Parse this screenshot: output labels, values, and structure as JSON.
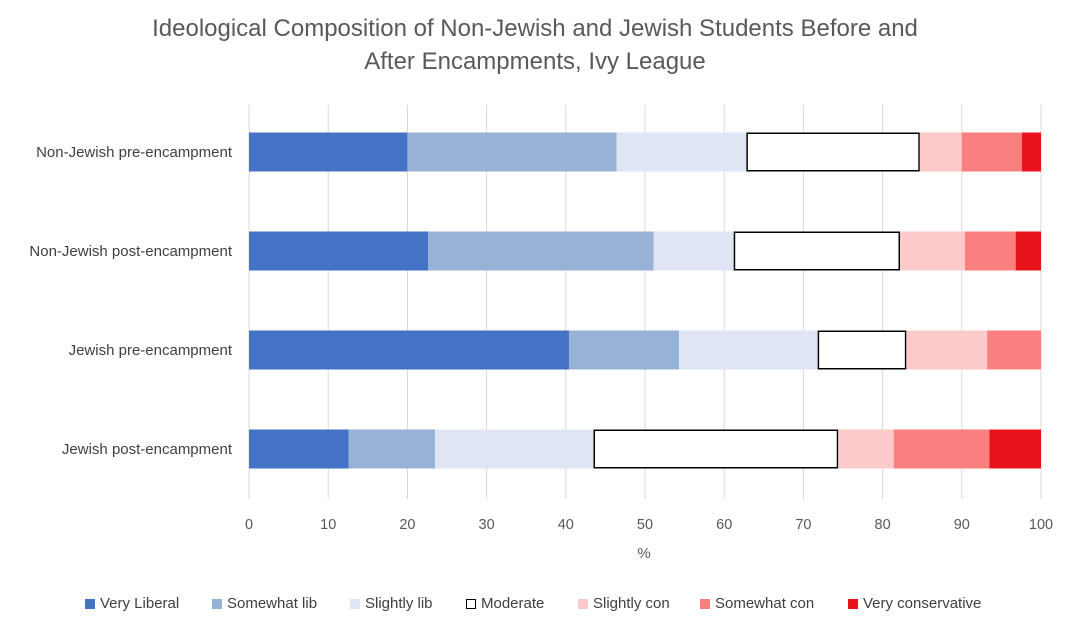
{
  "chart_data": {
    "type": "bar",
    "orientation": "horizontal",
    "stacked": true,
    "title_lines": [
      "Ideological Composition of Non-Jewish and Jewish Students Before and",
      "After Encampments, Ivy League"
    ],
    "xlabel": "%",
    "ylabel": "",
    "xlim": [
      0,
      100
    ],
    "xticks": [
      0,
      10,
      20,
      30,
      40,
      50,
      60,
      70,
      80,
      90,
      100
    ],
    "grid": "vertical",
    "legend_position": "bottom",
    "categories": [
      "Non-Jewish pre-encampment",
      "Non-Jewish post-encampment",
      "Jewish pre-encampment",
      "Jewish post-encampment"
    ],
    "series": [
      {
        "name": "Very Liberal",
        "color": "#4472C4",
        "values": [
          20.0,
          22.6,
          40.4,
          12.6
        ]
      },
      {
        "name": "Somewhat lib",
        "color": "#98B1D7",
        "values": [
          26.4,
          28.5,
          13.9,
          10.9
        ]
      },
      {
        "name": "Slightly lib",
        "color": "#DFE5F2",
        "values": [
          16.4,
          10.1,
          17.5,
          20.0
        ]
      },
      {
        "name": "Moderate",
        "color": "#FFFFFF",
        "outline": "#000000",
        "values": [
          21.9,
          21.0,
          11.2,
          30.9
        ]
      },
      {
        "name": "Slightly con",
        "color": "#FCCACA",
        "values": [
          5.3,
          8.2,
          10.2,
          7.0
        ]
      },
      {
        "name": "Somewhat con",
        "color": "#FA7F7F",
        "values": [
          7.6,
          6.4,
          6.8,
          12.1
        ]
      },
      {
        "name": "Very conservative",
        "color": "#E8141B",
        "values": [
          2.4,
          3.2,
          0.0,
          6.5
        ]
      }
    ]
  }
}
